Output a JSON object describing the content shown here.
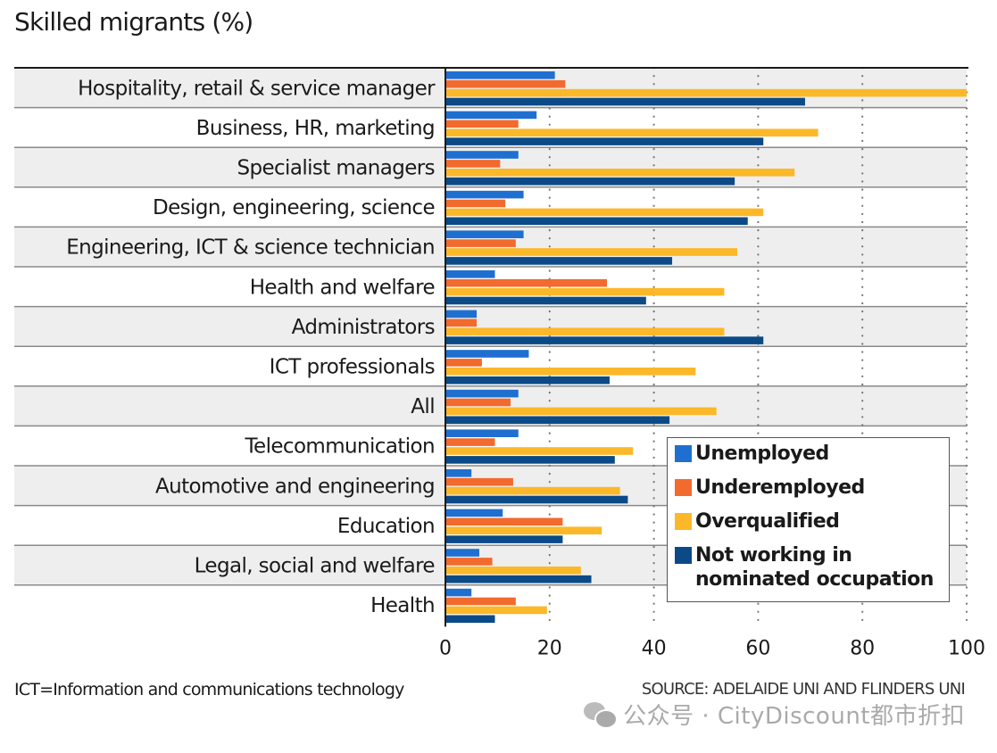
{
  "chart_data": {
    "type": "bar",
    "orientation": "horizontal",
    "title": "Skilled migrants (%)",
    "xlabel": "",
    "ylabel": "",
    "xlim": [
      0,
      100
    ],
    "xticks": [
      0,
      20,
      40,
      60,
      80,
      100
    ],
    "grid": "vertical dotted",
    "legend_position": "bottom-right",
    "categories": [
      "Hospitality, retail & service manager",
      "Business, HR, marketing",
      "Specialist managers",
      "Design, engineering, science",
      "Engineering, ICT & science technician",
      "Health and welfare",
      "Administrators",
      "ICT professionals",
      "All",
      "Telecommunication",
      "Automotive and engineering",
      "Education",
      "Legal, social and welfare",
      "Health"
    ],
    "series": [
      {
        "name": "Unemployed",
        "color": "#1f6fd0",
        "values": [
          21,
          17.5,
          14,
          15,
          15,
          9.5,
          6,
          16,
          14,
          14,
          5,
          11,
          6.5,
          5
        ]
      },
      {
        "name": "Underemployed",
        "color": "#f26a2e",
        "values": [
          23,
          14,
          10.5,
          11.5,
          13.5,
          31,
          6,
          7,
          12.5,
          9.5,
          13,
          22.5,
          9,
          13.5
        ]
      },
      {
        "name": "Overqualified",
        "color": "#fbb829",
        "values": [
          100,
          71.5,
          67,
          61,
          56,
          53.5,
          53.5,
          48,
          52,
          36,
          33.5,
          30,
          26,
          19.5
        ]
      },
      {
        "name": "Not working in nominated occupation",
        "color": "#0b4a86",
        "values": [
          69,
          61,
          55.5,
          58,
          43.5,
          38.5,
          61,
          31.5,
          43,
          32.5,
          35,
          22.5,
          28,
          9.5
        ]
      }
    ]
  },
  "legend": {
    "items": [
      {
        "label": "Unemployed",
        "color": "#1f6fd0"
      },
      {
        "label": "Underemployed",
        "color": "#f26a2e"
      },
      {
        "label": "Overqualified",
        "color": "#fbb829"
      },
      {
        "label": "Not working in nominated occupation",
        "color": "#0b4a86"
      }
    ]
  },
  "footnote": "ICT=Information and communications technology",
  "source": "SOURCE: ADELAIDE UNI AND FLINDERS UNI",
  "watermark": "公众号 · CityDiscount都市折扣"
}
